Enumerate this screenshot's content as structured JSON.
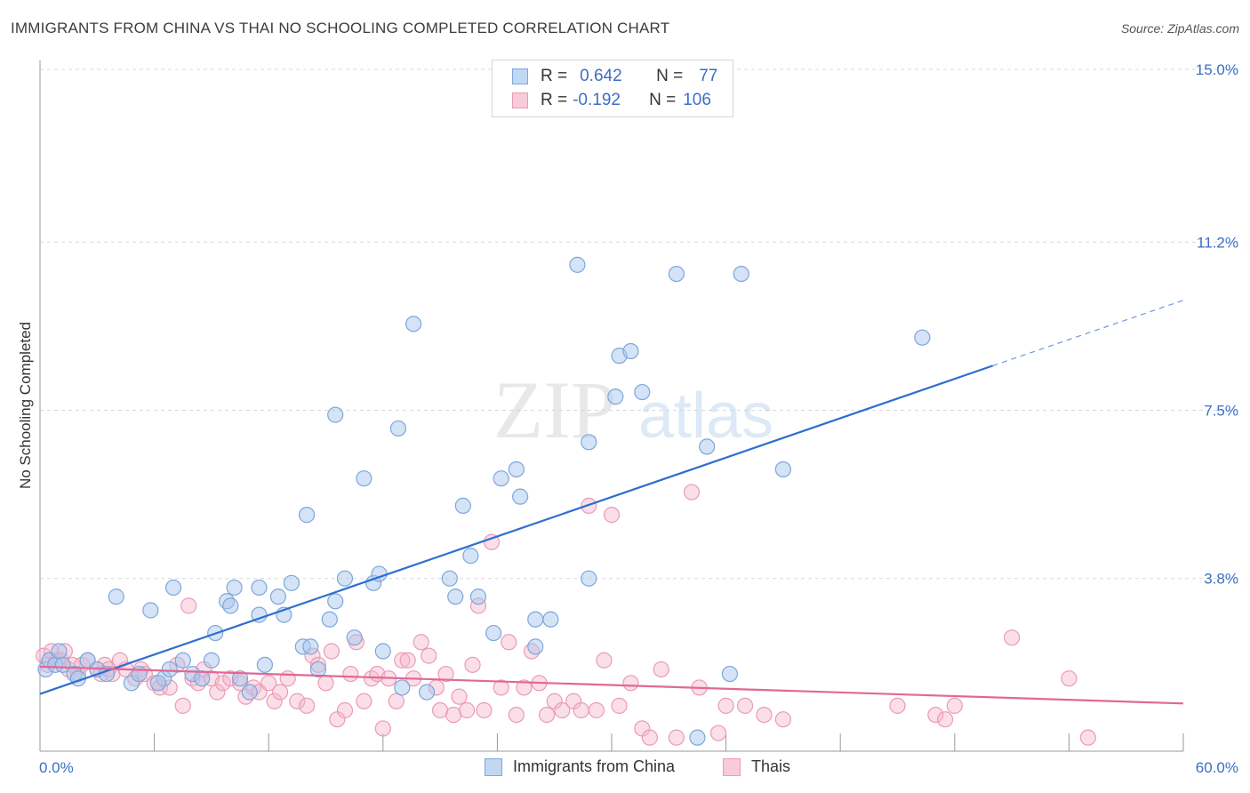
{
  "title": "IMMIGRANTS FROM CHINA VS THAI NO SCHOOLING COMPLETED CORRELATION CHART",
  "source": "Source: ZipAtlas.com",
  "watermark": {
    "zip": "ZIP",
    "atlas": "atlas"
  },
  "legend": {
    "r_label": "R =",
    "n_label": "N =",
    "series1": {
      "r": "0.642",
      "n": "77"
    },
    "series2": {
      "r": "-0.192",
      "n": "106"
    }
  },
  "bottom_legend": {
    "series1": "Immigrants from China",
    "series2": "Thais"
  },
  "colors": {
    "blue_fill": "#aac8ee",
    "blue_stroke": "#7ea6dc",
    "blue_line": "#2d6fd0",
    "pink_fill": "#f5b9cc",
    "pink_stroke": "#ec9ab5",
    "pink_line": "#e06896",
    "axis_text": "#3a6fc4",
    "grid": "#d9d9d9"
  },
  "chart_data": {
    "type": "scatter",
    "title": "IMMIGRANTS FROM CHINA VS THAI NO SCHOOLING COMPLETED CORRELATION CHART",
    "xlabel": "",
    "ylabel": "No Schooling Completed",
    "xlim": [
      0,
      60
    ],
    "ylim": [
      0,
      15.0
    ],
    "x_tick_labels": [
      "0.0%",
      "60.0%"
    ],
    "y_ticks": [
      3.8,
      7.5,
      11.2,
      15.0
    ],
    "y_tick_labels": [
      "3.8%",
      "7.5%",
      "11.2%",
      "15.0%"
    ],
    "series": [
      {
        "name": "Immigrants from China",
        "r": 0.642,
        "n": 77,
        "trend": {
          "x0": 0,
          "y0": 1.26,
          "x1": 50,
          "y1": 8.48,
          "dash_to_x": 60,
          "dash_to_y": 9.92
        },
        "points": [
          [
            0.3,
            1.8
          ],
          [
            0.5,
            2.0
          ],
          [
            0.8,
            1.9
          ],
          [
            1.0,
            2.2
          ],
          [
            1.2,
            1.9
          ],
          [
            1.8,
            1.7
          ],
          [
            2.0,
            1.6
          ],
          [
            2.5,
            2.0
          ],
          [
            3.0,
            1.8
          ],
          [
            3.5,
            1.7
          ],
          [
            4.0,
            3.4
          ],
          [
            4.8,
            1.5
          ],
          [
            5.2,
            1.7
          ],
          [
            5.8,
            3.1
          ],
          [
            6.5,
            1.6
          ],
          [
            6.8,
            1.8
          ],
          [
            7.0,
            3.6
          ],
          [
            7.5,
            2.0
          ],
          [
            8.0,
            1.7
          ],
          [
            8.5,
            1.6
          ],
          [
            9.0,
            2.0
          ],
          [
            9.2,
            2.6
          ],
          [
            9.8,
            3.3
          ],
          [
            10.0,
            3.2
          ],
          [
            10.2,
            3.6
          ],
          [
            10.5,
            1.6
          ],
          [
            11.5,
            3.6
          ],
          [
            11.0,
            1.3
          ],
          [
            11.5,
            3.0
          ],
          [
            11.8,
            1.9
          ],
          [
            12.5,
            3.4
          ],
          [
            12.8,
            3.0
          ],
          [
            13.2,
            3.7
          ],
          [
            13.8,
            2.3
          ],
          [
            14.0,
            5.2
          ],
          [
            14.2,
            2.3
          ],
          [
            14.6,
            1.8
          ],
          [
            15.2,
            2.9
          ],
          [
            15.5,
            3.3
          ],
          [
            15.5,
            7.4
          ],
          [
            16.0,
            3.8
          ],
          [
            16.5,
            2.5
          ],
          [
            17.0,
            6.0
          ],
          [
            17.5,
            3.7
          ],
          [
            17.8,
            3.9
          ],
          [
            18.0,
            2.2
          ],
          [
            18.8,
            7.1
          ],
          [
            19.0,
            1.4
          ],
          [
            19.6,
            9.4
          ],
          [
            20.3,
            1.3
          ],
          [
            21.5,
            3.8
          ],
          [
            21.8,
            3.4
          ],
          [
            22.2,
            5.4
          ],
          [
            22.6,
            4.3
          ],
          [
            23.0,
            3.4
          ],
          [
            23.8,
            2.6
          ],
          [
            24.2,
            6.0
          ],
          [
            25.0,
            6.2
          ],
          [
            25.2,
            5.6
          ],
          [
            26.0,
            2.9
          ],
          [
            26.8,
            2.9
          ],
          [
            26.0,
            2.3
          ],
          [
            28.2,
            10.7
          ],
          [
            28.8,
            6.8
          ],
          [
            28.8,
            3.8
          ],
          [
            30.2,
            7.8
          ],
          [
            30.4,
            8.7
          ],
          [
            31.0,
            8.8
          ],
          [
            31.6,
            7.9
          ],
          [
            33.4,
            10.5
          ],
          [
            35.0,
            6.7
          ],
          [
            36.2,
            1.7
          ],
          [
            36.8,
            10.5
          ],
          [
            39.0,
            6.2
          ],
          [
            46.3,
            9.1
          ],
          [
            34.5,
            0.3
          ],
          [
            6.2,
            1.5
          ]
        ]
      },
      {
        "name": "Thais",
        "r": -0.192,
        "n": 106,
        "trend": {
          "x0": 0,
          "y0": 1.86,
          "x1": 60,
          "y1": 1.05
        },
        "points": [
          [
            0.2,
            2.1
          ],
          [
            0.4,
            1.9
          ],
          [
            0.6,
            2.2
          ],
          [
            0.9,
            2.0
          ],
          [
            1.1,
            2.0
          ],
          [
            1.3,
            2.2
          ],
          [
            1.5,
            1.8
          ],
          [
            1.7,
            1.9
          ],
          [
            2.0,
            1.7
          ],
          [
            2.2,
            1.9
          ],
          [
            2.5,
            2.0
          ],
          [
            3.0,
            1.8
          ],
          [
            3.2,
            1.7
          ],
          [
            3.4,
            1.9
          ],
          [
            3.6,
            1.8
          ],
          [
            3.8,
            1.7
          ],
          [
            4.2,
            2.0
          ],
          [
            4.5,
            1.8
          ],
          [
            5.0,
            1.6
          ],
          [
            5.3,
            1.8
          ],
          [
            5.5,
            1.7
          ],
          [
            6.0,
            1.5
          ],
          [
            6.3,
            1.4
          ],
          [
            6.8,
            1.4
          ],
          [
            7.2,
            1.9
          ],
          [
            7.5,
            1.0
          ],
          [
            7.8,
            3.2
          ],
          [
            8.0,
            1.6
          ],
          [
            8.3,
            1.5
          ],
          [
            8.6,
            1.8
          ],
          [
            9.0,
            1.6
          ],
          [
            9.3,
            1.3
          ],
          [
            9.6,
            1.5
          ],
          [
            10.0,
            1.6
          ],
          [
            10.5,
            1.5
          ],
          [
            10.8,
            1.2
          ],
          [
            11.2,
            1.4
          ],
          [
            11.5,
            1.3
          ],
          [
            12.0,
            1.5
          ],
          [
            12.3,
            1.1
          ],
          [
            12.6,
            1.3
          ],
          [
            13.0,
            1.6
          ],
          [
            13.5,
            1.1
          ],
          [
            14.0,
            1.0
          ],
          [
            14.3,
            2.1
          ],
          [
            14.6,
            1.9
          ],
          [
            15.0,
            1.5
          ],
          [
            15.3,
            2.2
          ],
          [
            15.6,
            0.7
          ],
          [
            16.0,
            0.9
          ],
          [
            16.3,
            1.7
          ],
          [
            16.6,
            2.4
          ],
          [
            17.0,
            1.1
          ],
          [
            17.4,
            1.6
          ],
          [
            17.7,
            1.7
          ],
          [
            18.0,
            0.5
          ],
          [
            18.3,
            1.6
          ],
          [
            18.7,
            1.1
          ],
          [
            19.0,
            2.0
          ],
          [
            19.3,
            2.0
          ],
          [
            19.6,
            1.6
          ],
          [
            20.0,
            2.4
          ],
          [
            20.4,
            2.1
          ],
          [
            20.8,
            1.4
          ],
          [
            21.0,
            0.9
          ],
          [
            21.3,
            1.7
          ],
          [
            21.7,
            0.8
          ],
          [
            22.0,
            1.2
          ],
          [
            22.4,
            0.9
          ],
          [
            22.7,
            1.9
          ],
          [
            23.0,
            3.2
          ],
          [
            23.3,
            0.9
          ],
          [
            23.7,
            4.6
          ],
          [
            24.2,
            1.4
          ],
          [
            24.6,
            2.4
          ],
          [
            25.0,
            0.8
          ],
          [
            25.4,
            1.4
          ],
          [
            25.8,
            2.2
          ],
          [
            26.2,
            1.5
          ],
          [
            26.6,
            0.8
          ],
          [
            27.0,
            1.1
          ],
          [
            27.4,
            0.9
          ],
          [
            28.0,
            1.1
          ],
          [
            28.4,
            0.9
          ],
          [
            28.8,
            5.4
          ],
          [
            29.2,
            0.9
          ],
          [
            29.6,
            2.0
          ],
          [
            30.0,
            5.2
          ],
          [
            30.4,
            1.0
          ],
          [
            31.0,
            1.5
          ],
          [
            31.6,
            0.5
          ],
          [
            32.0,
            0.3
          ],
          [
            32.6,
            1.8
          ],
          [
            33.4,
            0.3
          ],
          [
            34.2,
            5.7
          ],
          [
            34.6,
            1.4
          ],
          [
            35.6,
            0.4
          ],
          [
            36.0,
            1.0
          ],
          [
            37.0,
            1.0
          ],
          [
            38.0,
            0.8
          ],
          [
            39.0,
            0.7
          ],
          [
            45.0,
            1.0
          ],
          [
            47.0,
            0.8
          ],
          [
            47.5,
            0.7
          ],
          [
            48.0,
            1.0
          ],
          [
            51.0,
            2.5
          ],
          [
            54.0,
            1.6
          ],
          [
            55.0,
            0.3
          ]
        ]
      }
    ]
  }
}
